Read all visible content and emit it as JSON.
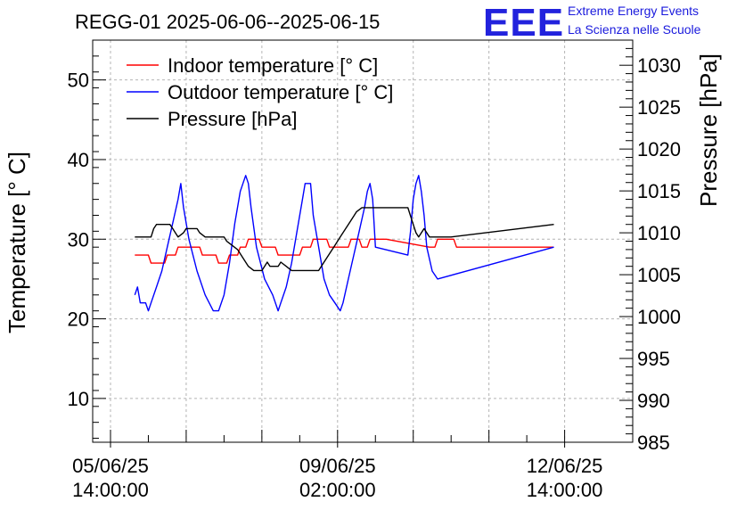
{
  "chart_data": {
    "type": "line",
    "title": "REGG-01 2025-06-06--2025-06-15",
    "logo": {
      "mark": "EEE",
      "line1": "Extreme Energy Events",
      "line2": "La Scienza nelle Scuole",
      "color": "#2222dd"
    },
    "ylabel_left": "Temperature [° C]",
    "ylabel_right": "Pressure [hPa]",
    "x_hours_range": [
      0,
      180
    ],
    "ylim_left": [
      4.5,
      55
    ],
    "ylim_right": [
      985,
      1033
    ],
    "x_ticks": [
      {
        "hour": 0,
        "date": "05/06/25",
        "time": "14:00:00"
      },
      {
        "hour": 84,
        "date": "09/06/25",
        "time": "02:00:00"
      },
      {
        "hour": 168,
        "date": "12/06/25",
        "time": "14:00:00"
      }
    ],
    "x_minor_hours": [
      0,
      28,
      56,
      84,
      112,
      140,
      168
    ],
    "y_left_ticks": [
      10,
      20,
      30,
      40,
      50
    ],
    "y_right_ticks": [
      985,
      990,
      995,
      1000,
      1005,
      1010,
      1015,
      1020,
      1025,
      1030
    ],
    "grid": true,
    "series": [
      {
        "name": "Indoor temperature [° C]",
        "axis": "left",
        "color": "#ff0000",
        "points": [
          [
            9,
            28
          ],
          [
            14,
            28
          ],
          [
            15,
            27
          ],
          [
            20,
            27
          ],
          [
            21,
            28
          ],
          [
            24,
            28
          ],
          [
            25,
            29
          ],
          [
            33,
            29
          ],
          [
            34,
            28
          ],
          [
            39,
            28
          ],
          [
            40,
            27
          ],
          [
            43,
            27
          ],
          [
            44,
            28
          ],
          [
            47,
            28
          ],
          [
            48,
            29
          ],
          [
            50,
            29
          ],
          [
            51,
            30
          ],
          [
            55,
            30
          ],
          [
            56,
            29
          ],
          [
            61,
            29
          ],
          [
            62,
            28
          ],
          [
            70,
            28
          ],
          [
            71,
            29
          ],
          [
            74,
            29
          ],
          [
            75,
            30
          ],
          [
            80,
            30
          ],
          [
            81,
            29
          ],
          [
            88,
            29
          ],
          [
            89,
            30
          ],
          [
            92,
            30
          ],
          [
            93,
            29
          ],
          [
            95,
            29
          ],
          [
            96,
            30
          ],
          [
            102,
            30
          ],
          [
            118,
            29
          ],
          [
            120,
            29
          ],
          [
            121,
            30
          ],
          [
            127,
            30
          ],
          [
            128,
            29
          ],
          [
            164,
            29
          ]
        ]
      },
      {
        "name": "Outdoor temperature [° C]",
        "axis": "left",
        "color": "#0000ff",
        "points": [
          [
            9,
            23
          ],
          [
            10,
            24
          ],
          [
            11,
            22
          ],
          [
            12,
            22
          ],
          [
            13,
            22
          ],
          [
            14,
            21
          ],
          [
            15,
            22
          ],
          [
            17,
            24
          ],
          [
            19,
            26
          ],
          [
            21,
            29
          ],
          [
            23,
            32
          ],
          [
            25,
            35
          ],
          [
            26,
            37
          ],
          [
            27,
            34
          ],
          [
            29,
            30
          ],
          [
            32,
            26
          ],
          [
            35,
            23
          ],
          [
            38,
            21
          ],
          [
            40,
            21
          ],
          [
            42,
            23
          ],
          [
            44,
            27
          ],
          [
            46,
            32
          ],
          [
            48,
            36
          ],
          [
            50,
            38
          ],
          [
            51,
            37
          ],
          [
            52,
            34
          ],
          [
            54,
            29
          ],
          [
            57,
            25
          ],
          [
            60,
            23
          ],
          [
            62,
            21
          ],
          [
            63,
            22
          ],
          [
            65,
            24
          ],
          [
            67,
            27
          ],
          [
            69,
            31
          ],
          [
            71,
            35
          ],
          [
            72,
            37
          ],
          [
            74,
            37
          ],
          [
            75,
            33
          ],
          [
            77,
            29
          ],
          [
            79,
            25
          ],
          [
            81,
            23
          ],
          [
            83,
            22
          ],
          [
            85,
            21
          ],
          [
            86,
            22
          ],
          [
            88,
            25
          ],
          [
            90,
            28
          ],
          [
            92,
            31
          ],
          [
            94,
            34
          ],
          [
            95,
            36
          ],
          [
            96,
            37
          ],
          [
            97,
            35
          ],
          [
            98,
            29
          ],
          [
            110,
            28
          ],
          [
            111,
            31
          ],
          [
            112,
            35
          ],
          [
            113,
            37
          ],
          [
            114,
            38
          ],
          [
            115,
            36
          ],
          [
            116,
            33
          ],
          [
            117,
            29
          ],
          [
            119,
            26
          ],
          [
            121,
            25
          ],
          [
            164,
            29
          ]
        ]
      },
      {
        "name": "Pressure [hPa]",
        "axis": "right",
        "color": "#000000",
        "points": [
          [
            9,
            1009.5
          ],
          [
            15,
            1009.5
          ],
          [
            16,
            1010.5
          ],
          [
            17,
            1011
          ],
          [
            22,
            1011
          ],
          [
            23,
            1010.5
          ],
          [
            24,
            1010
          ],
          [
            25,
            1009.5
          ],
          [
            27,
            1010
          ],
          [
            28,
            1010.5
          ],
          [
            32,
            1010.5
          ],
          [
            33,
            1010
          ],
          [
            35,
            1009.5
          ],
          [
            42,
            1009.5
          ],
          [
            43,
            1009
          ],
          [
            45,
            1008.5
          ],
          [
            47,
            1008
          ],
          [
            49,
            1007
          ],
          [
            51,
            1006
          ],
          [
            53,
            1005.5
          ],
          [
            56,
            1005.5
          ],
          [
            57,
            1006
          ],
          [
            58,
            1006.5
          ],
          [
            59,
            1006
          ],
          [
            62,
            1006
          ],
          [
            63,
            1006.5
          ],
          [
            65,
            1006
          ],
          [
            67,
            1005.5
          ],
          [
            77,
            1005.5
          ],
          [
            79,
            1006.5
          ],
          [
            81,
            1007.5
          ],
          [
            83,
            1008.5
          ],
          [
            85,
            1009.5
          ],
          [
            87,
            1010.5
          ],
          [
            89,
            1011.5
          ],
          [
            91,
            1012.5
          ],
          [
            93,
            1013
          ],
          [
            110,
            1013
          ],
          [
            111,
            1012
          ],
          [
            112,
            1011
          ],
          [
            113,
            1010
          ],
          [
            114,
            1009.5
          ],
          [
            115,
            1010
          ],
          [
            116,
            1010.5
          ],
          [
            117,
            1010
          ],
          [
            118,
            1009.5
          ],
          [
            126,
            1009.5
          ],
          [
            164,
            1011
          ]
        ]
      }
    ]
  }
}
